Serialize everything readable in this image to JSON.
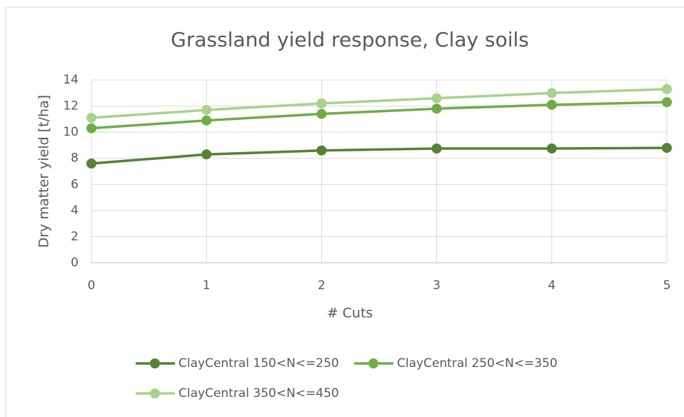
{
  "chart_data": {
    "type": "line",
    "title": "Grassland yield response, Clay soils",
    "x_label": "# Cuts",
    "y_label": "Dry matter yield [t/ha]",
    "x": [
      0,
      1,
      2,
      3,
      4,
      5
    ],
    "xlim": [
      0,
      5
    ],
    "xticks": [
      0,
      1,
      2,
      3,
      4,
      5
    ],
    "ylim": [
      0,
      14
    ],
    "yticks": [
      0,
      2,
      4,
      6,
      8,
      10,
      12,
      14
    ],
    "grid": true,
    "legend": "bottom",
    "series": [
      {
        "name": "ClayCentral 150<N<=250",
        "color": "#548235",
        "values": [
          7.6,
          8.3,
          8.6,
          8.75,
          8.75,
          8.8
        ]
      },
      {
        "name": "ClayCentral 250<N<=350",
        "color": "#70ad47",
        "values": [
          10.3,
          10.9,
          11.4,
          11.8,
          12.1,
          12.3
        ]
      },
      {
        "name": "ClayCentral 350<N<=450",
        "color": "#a9d18e",
        "values": [
          11.1,
          11.7,
          12.2,
          12.6,
          13.0,
          13.3
        ]
      }
    ]
  }
}
